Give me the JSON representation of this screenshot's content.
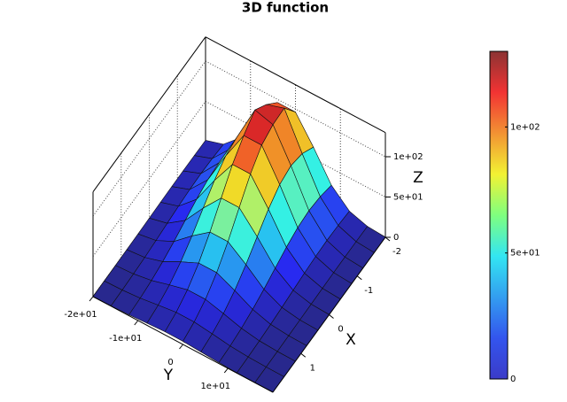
{
  "chart_data": {
    "type": "surface",
    "title": "3D function",
    "xlabel": "X",
    "ylabel": "Y",
    "zlabel": "Z",
    "x": [
      -2,
      -1.6,
      -1.2,
      -0.8,
      -0.4,
      0,
      0.4,
      0.8,
      1.2,
      1.6,
      2
    ],
    "y": [
      -20,
      -16,
      -12,
      -8,
      -4,
      0,
      4,
      8,
      12,
      16,
      20
    ],
    "z": [
      [
        1.7,
        8.7,
        29.0,
        64.4,
        96.1,
        96.1,
        64.4,
        29.0,
        8.7,
        1.7,
        0.2
      ],
      [
        2.0,
        10.2,
        34.0,
        75.6,
        112.7,
        120.1,
        75.6,
        34.0,
        10.2,
        2.0,
        0.3
      ],
      [
        2.1,
        10.8,
        35.9,
        79.8,
        125.3,
        118.9,
        79.8,
        35.9,
        10.8,
        2.1,
        0.3
      ],
      [
        2.0,
        10.2,
        34.0,
        75.6,
        112.7,
        112.7,
        75.6,
        34.0,
        10.2,
        2.0,
        0.3
      ],
      [
        1.7,
        8.7,
        29.0,
        64.4,
        96.1,
        96.1,
        64.4,
        29.0,
        8.7,
        1.7,
        0.2
      ],
      [
        1.3,
        6.7,
        22.2,
        49.4,
        73.6,
        73.6,
        49.4,
        22.2,
        6.7,
        1.3,
        0.2
      ],
      [
        0.9,
        4.6,
        15.3,
        34.0,
        50.6,
        50.6,
        34.0,
        15.3,
        4.6,
        0.9,
        0.1
      ],
      [
        0.6,
        2.8,
        9.5,
        21.1,
        31.4,
        31.4,
        21.1,
        9.5,
        2.8,
        0.6,
        0.1
      ],
      [
        0.3,
        1.6,
        5.3,
        11.7,
        17.5,
        17.5,
        11.7,
        5.3,
        1.6,
        0.3,
        0.0
      ],
      [
        0.2,
        0.8,
        2.6,
        5.8,
        8.7,
        8.7,
        5.8,
        2.6,
        0.8,
        0.2,
        0.0
      ],
      [
        0.1,
        0.4,
        1.2,
        2.6,
        3.9,
        3.9,
        2.6,
        1.2,
        0.4,
        0.1,
        0.0
      ]
    ],
    "xlim": [
      -2,
      2
    ],
    "ylim": [
      -20,
      20
    ],
    "zlim": [
      0,
      130
    ],
    "xticks": [
      -2,
      -1,
      0,
      1
    ],
    "yticks": [
      {
        "value": -20,
        "label": "-2e+01"
      },
      {
        "value": -10,
        "label": "-1e+01"
      },
      0,
      {
        "value": 10,
        "label": "1e+01"
      }
    ],
    "zticks": [
      0,
      {
        "value": 50,
        "label": "5e+01"
      },
      {
        "value": 100,
        "label": "1e+02"
      }
    ],
    "colormap": "jet",
    "colorbar": {
      "lim": [
        0,
        130
      ],
      "ticks": [
        0,
        {
          "value": 50,
          "label": "5e+01"
        },
        {
          "value": 100,
          "label": "1e+02"
        }
      ]
    },
    "grid": true
  }
}
